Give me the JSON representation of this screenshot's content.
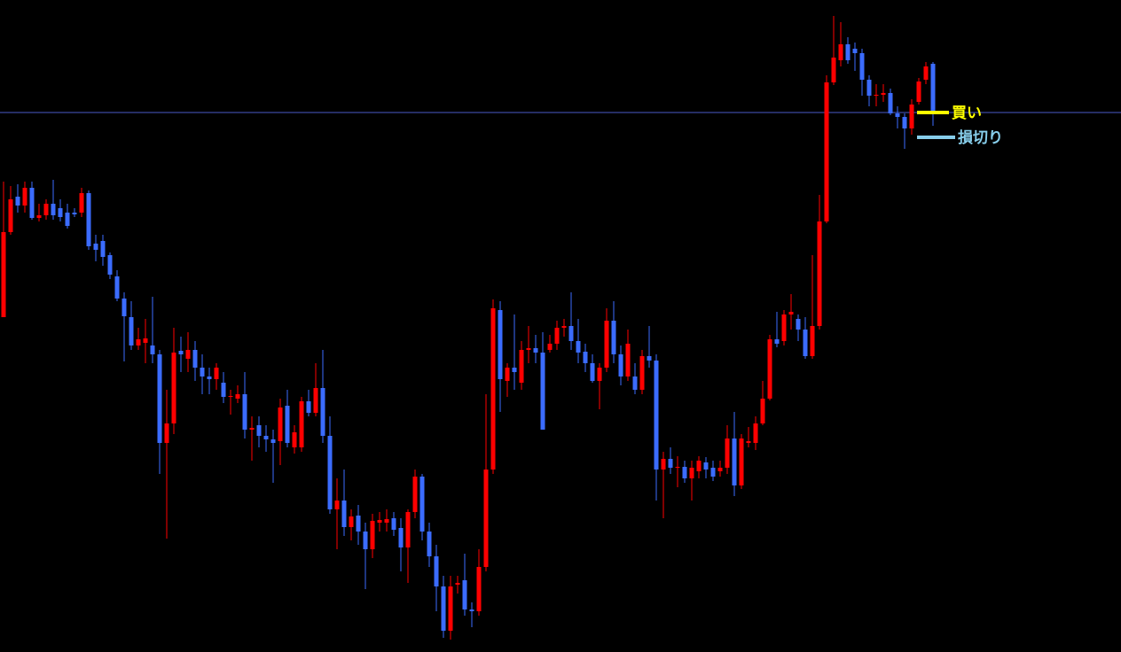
{
  "chart_data": {
    "type": "candlestick",
    "ylim": [
      0,
      736
    ],
    "up_color": "#ff0000",
    "down_color": "#3b6cff",
    "candles": [
      [
        378,
        531,
        378,
        474
      ],
      [
        474,
        526,
        471,
        511
      ],
      [
        514,
        528,
        496,
        504
      ],
      [
        504,
        531,
        496,
        524
      ],
      [
        524,
        531,
        488,
        490
      ],
      [
        490,
        506,
        486,
        493
      ],
      [
        493,
        511,
        488,
        506
      ],
      [
        506,
        533,
        488,
        493
      ],
      [
        501,
        511,
        486,
        491
      ],
      [
        496,
        506,
        478,
        481
      ],
      [
        496,
        501,
        491,
        494
      ],
      [
        496,
        524,
        491,
        518
      ],
      [
        518,
        521,
        454,
        458
      ],
      [
        461,
        471,
        441,
        454
      ],
      [
        464,
        471,
        436,
        446
      ],
      [
        448,
        451,
        421,
        426
      ],
      [
        424,
        431,
        396,
        399
      ],
      [
        399,
        406,
        328,
        379
      ],
      [
        378,
        396,
        341,
        346
      ],
      [
        346,
        366,
        341,
        353
      ],
      [
        349,
        376,
        326,
        354
      ],
      [
        346,
        401,
        326,
        336
      ],
      [
        336,
        341,
        201,
        236
      ],
      [
        236,
        296,
        128,
        258
      ],
      [
        258,
        366,
        246,
        338
      ],
      [
        340,
        356,
        316,
        336
      ],
      [
        331,
        361,
        316,
        341
      ],
      [
        341,
        351,
        306,
        321
      ],
      [
        321,
        336,
        291,
        311
      ],
      [
        311,
        321,
        291,
        308
      ],
      [
        308,
        326,
        296,
        321
      ],
      [
        304,
        316,
        281,
        288
      ],
      [
        288,
        296,
        268,
        289
      ],
      [
        286,
        301,
        281,
        291
      ],
      [
        291,
        316,
        241,
        251
      ],
      [
        251,
        266,
        216,
        253
      ],
      [
        256,
        266,
        231,
        244
      ],
      [
        244,
        256,
        226,
        240
      ],
      [
        240,
        251,
        191,
        236
      ],
      [
        238,
        286,
        211,
        276
      ],
      [
        278,
        296,
        231,
        236
      ],
      [
        231,
        256,
        224,
        248
      ],
      [
        231,
        288,
        226,
        283
      ],
      [
        283,
        296,
        266,
        270
      ],
      [
        270,
        326,
        266,
        298
      ],
      [
        298,
        341,
        236,
        244
      ],
      [
        244,
        266,
        156,
        161
      ],
      [
        161,
        196,
        116,
        171
      ],
      [
        171,
        206,
        131,
        141
      ],
      [
        141,
        161,
        126,
        153
      ],
      [
        154,
        166,
        121,
        136
      ],
      [
        136,
        146,
        71,
        116
      ],
      [
        116,
        156,
        106,
        148
      ],
      [
        146,
        158,
        136,
        149
      ],
      [
        146,
        161,
        136,
        150
      ],
      [
        151,
        158,
        131,
        138
      ],
      [
        140,
        151,
        91,
        118
      ],
      [
        118,
        161,
        78,
        158
      ],
      [
        158,
        206,
        151,
        198
      ],
      [
        198,
        201,
        126,
        136
      ],
      [
        136,
        146,
        96,
        108
      ],
      [
        108,
        121,
        46,
        74
      ],
      [
        74,
        86,
        16,
        24
      ],
      [
        24,
        86,
        14,
        74
      ],
      [
        76,
        86,
        66,
        78
      ],
      [
        81,
        111,
        41,
        48
      ],
      [
        48,
        56,
        28,
        46
      ],
      [
        46,
        116,
        41,
        96
      ],
      [
        96,
        291,
        91,
        206
      ],
      [
        206,
        398,
        201,
        388
      ],
      [
        386,
        396,
        271,
        308
      ],
      [
        306,
        326,
        288,
        321
      ],
      [
        321,
        381,
        296,
        316
      ],
      [
        304,
        351,
        296,
        341
      ],
      [
        341,
        368,
        326,
        343
      ],
      [
        343,
        358,
        326,
        338
      ],
      [
        338,
        361,
        251,
        251
      ],
      [
        341,
        358,
        338,
        348
      ],
      [
        348,
        374,
        341,
        366
      ],
      [
        366,
        376,
        356,
        368
      ],
      [
        368,
        406,
        341,
        351
      ],
      [
        351,
        376,
        326,
        338
      ],
      [
        339,
        348,
        316,
        326
      ],
      [
        326,
        336,
        304,
        306
      ],
      [
        306,
        326,
        274,
        321
      ],
      [
        321,
        388,
        316,
        374
      ],
      [
        374,
        396,
        326,
        336
      ],
      [
        336,
        346,
        301,
        311
      ],
      [
        311,
        364,
        306,
        348
      ],
      [
        311,
        326,
        291,
        296
      ],
      [
        296,
        341,
        291,
        334
      ],
      [
        334,
        368,
        321,
        329
      ],
      [
        329,
        336,
        171,
        206
      ],
      [
        206,
        226,
        151,
        218
      ],
      [
        218,
        231,
        201,
        208
      ],
      [
        208,
        221,
        186,
        209
      ],
      [
        209,
        216,
        191,
        196
      ],
      [
        196,
        216,
        171,
        208
      ],
      [
        204,
        221,
        196,
        216
      ],
      [
        214,
        220,
        196,
        206
      ],
      [
        208,
        216,
        193,
        198
      ],
      [
        204,
        216,
        198,
        208
      ],
      [
        208,
        256,
        201,
        241
      ],
      [
        241,
        271,
        176,
        188
      ],
      [
        188,
        246,
        184,
        241
      ],
      [
        236,
        254,
        231,
        238
      ],
      [
        236,
        266,
        228,
        258
      ],
      [
        258,
        306,
        256,
        286
      ],
      [
        286,
        358,
        284,
        353
      ],
      [
        353,
        384,
        344,
        348
      ],
      [
        351,
        386,
        346,
        381
      ],
      [
        381,
        404,
        364,
        384
      ],
      [
        376,
        381,
        351,
        364
      ],
      [
        364,
        378,
        331,
        334
      ],
      [
        334,
        448,
        331,
        368
      ],
      [
        368,
        516,
        364,
        486
      ],
      [
        486,
        651,
        484,
        643
      ],
      [
        643,
        718,
        640,
        671
      ],
      [
        668,
        711,
        661,
        686
      ],
      [
        686,
        694,
        664,
        668
      ],
      [
        681,
        688,
        656,
        676
      ],
      [
        676,
        681,
        628,
        646
      ],
      [
        646,
        651,
        616,
        628
      ],
      [
        628,
        641,
        616,
        629
      ],
      [
        629,
        641,
        621,
        631
      ],
      [
        631,
        636,
        606,
        608
      ],
      [
        608,
        616,
        591,
        604
      ],
      [
        604,
        608,
        568,
        591
      ],
      [
        591,
        624,
        584,
        618
      ],
      [
        621,
        648,
        618,
        644
      ],
      [
        646,
        666,
        641,
        661
      ],
      [
        664,
        666,
        594,
        608
      ]
    ],
    "price_line": {
      "value": 609,
      "color": "#4a5ac8"
    },
    "levels": [
      {
        "label": "買い",
        "value": 609,
        "color": "#ffff00"
      },
      {
        "label": "損切り",
        "value": 581,
        "color": "#87ceeb"
      }
    ]
  }
}
